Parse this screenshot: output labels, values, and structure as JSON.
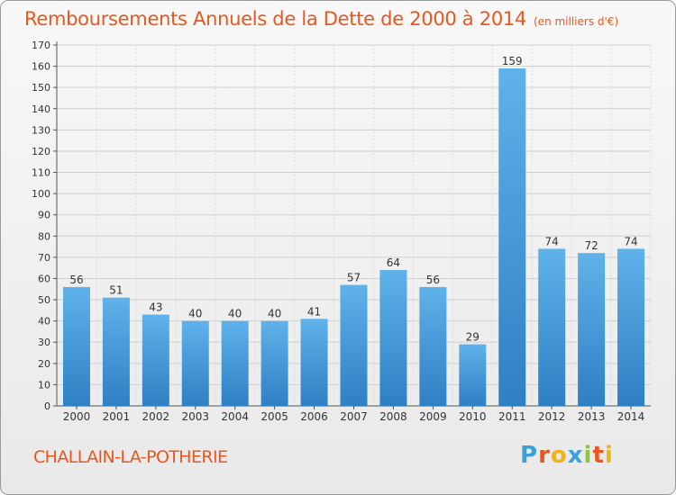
{
  "title": "Remboursements Annuels de la Dette de 2000 à 2014",
  "subtitle": "(en milliers d'€)",
  "commune": "CHALLAIN-LA-POTHERIE",
  "logo": {
    "letters": [
      "P",
      "r",
      "o",
      "x",
      "i",
      "t",
      "i"
    ],
    "colors": [
      "#3aa0d8",
      "#e8581e",
      "#f2b31a",
      "#3aa0d8",
      "#8cc63f",
      "#e8581e",
      "#f2b31a"
    ]
  },
  "chart_data": {
    "type": "bar",
    "categories": [
      "2000",
      "2001",
      "2002",
      "2003",
      "2004",
      "2005",
      "2006",
      "2007",
      "2008",
      "2009",
      "2010",
      "2011",
      "2012",
      "2013",
      "2014"
    ],
    "values": [
      56,
      51,
      43,
      40,
      40,
      40,
      41,
      57,
      64,
      56,
      29,
      159,
      74,
      72,
      74
    ],
    "ylim": [
      0,
      170
    ],
    "yticks": [
      0,
      10,
      20,
      30,
      40,
      50,
      60,
      70,
      80,
      90,
      100,
      110,
      120,
      130,
      140,
      150,
      160,
      170
    ],
    "grid": true,
    "bar_color": "#4a9fe0",
    "bar_color_dark": "#2f7fc4"
  }
}
